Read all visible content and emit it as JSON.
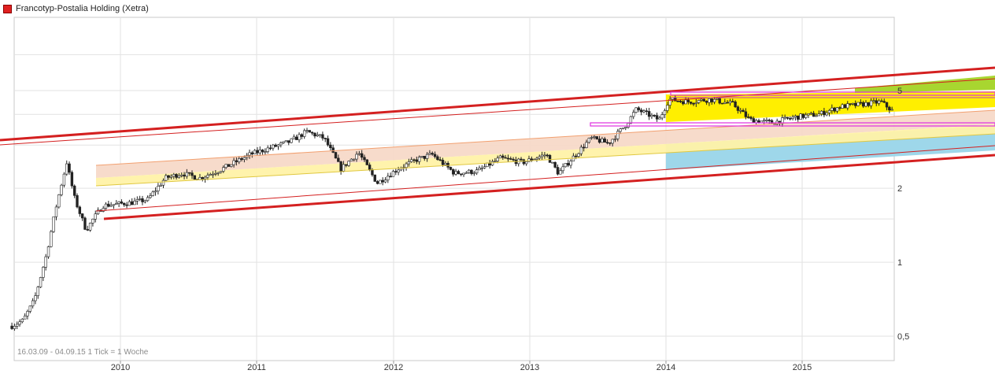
{
  "legend": {
    "label": "Francotyp-Postalia Holding (Xetra)",
    "color": "#e02020"
  },
  "range_note": "16.03.09 - 04.09.15   1 Tick = 1 Woche",
  "chart_data": {
    "type": "candlestick",
    "title": "Francotyp-Postalia Holding (Xetra)",
    "x_range": [
      "2009-03-16",
      "2015-09-04"
    ],
    "x_tick_labels": [
      "2010",
      "2011",
      "2012",
      "2013",
      "2014",
      "2015"
    ],
    "y_scale": "log",
    "y_range": [
      0.4,
      7.5
    ],
    "y_tick_labels": [
      "0,5",
      "1",
      "2",
      "5"
    ],
    "y_tick_values": [
      0.5,
      1,
      2,
      5
    ],
    "grid": true,
    "legend_position": "top-left",
    "series": [
      {
        "name": "Francotyp-Postalia Holding (Xetra)",
        "points": [
          [
            "2009-03-16",
            0.55
          ],
          [
            "2009-04-15",
            0.58
          ],
          [
            "2009-05-15",
            0.7
          ],
          [
            "2009-06-15",
            1.05
          ],
          [
            "2009-07-15",
            1.75
          ],
          [
            "2009-08-10",
            2.55
          ],
          [
            "2009-09-01",
            1.8
          ],
          [
            "2009-10-01",
            1.35
          ],
          [
            "2009-10-20",
            1.5
          ],
          [
            "2009-11-15",
            1.7
          ],
          [
            "2009-12-15",
            1.72
          ],
          [
            "2010-02-01",
            1.75
          ],
          [
            "2010-03-15",
            1.8
          ],
          [
            "2010-05-01",
            2.2
          ],
          [
            "2010-06-15",
            2.3
          ],
          [
            "2010-08-01",
            2.2
          ],
          [
            "2010-10-01",
            2.4
          ],
          [
            "2010-12-15",
            2.75
          ],
          [
            "2011-02-15",
            2.95
          ],
          [
            "2011-04-01",
            3.1
          ],
          [
            "2011-05-15",
            3.4
          ],
          [
            "2011-07-01",
            3.2
          ],
          [
            "2011-08-15",
            2.4
          ],
          [
            "2011-10-01",
            2.8
          ],
          [
            "2011-11-20",
            2.1
          ],
          [
            "2012-01-15",
            2.4
          ],
          [
            "2012-03-01",
            2.6
          ],
          [
            "2012-04-15",
            2.75
          ],
          [
            "2012-06-15",
            2.3
          ],
          [
            "2012-08-15",
            2.35
          ],
          [
            "2012-10-15",
            2.65
          ],
          [
            "2012-12-15",
            2.55
          ],
          [
            "2013-02-15",
            2.75
          ],
          [
            "2013-03-20",
            2.3
          ],
          [
            "2013-05-01",
            2.7
          ],
          [
            "2013-06-15",
            3.2
          ],
          [
            "2013-08-01",
            3.05
          ],
          [
            "2013-09-15",
            3.6
          ],
          [
            "2013-10-15",
            4.2
          ],
          [
            "2013-12-15",
            3.8
          ],
          [
            "2014-01-10",
            4.6
          ],
          [
            "2014-03-01",
            4.5
          ],
          [
            "2014-05-01",
            4.6
          ],
          [
            "2014-07-01",
            4.4
          ],
          [
            "2014-08-15",
            3.8
          ],
          [
            "2014-10-15",
            3.7
          ],
          [
            "2014-12-15",
            3.9
          ],
          [
            "2015-02-15",
            4.0
          ],
          [
            "2015-04-15",
            4.3
          ],
          [
            "2015-06-15",
            4.4
          ],
          [
            "2015-08-01",
            4.5
          ],
          [
            "2015-09-04",
            4.1
          ]
        ]
      }
    ],
    "annotations": [
      {
        "type": "trend-channel",
        "color": "#d42020"
      },
      {
        "type": "band",
        "color": "#f7d9c8"
      },
      {
        "type": "band",
        "color": "#fff2a8"
      },
      {
        "type": "band",
        "color": "#ffef00"
      },
      {
        "type": "band",
        "color": "#a8d630"
      },
      {
        "type": "band",
        "color": "#9ed7ea"
      },
      {
        "type": "range-box",
        "color": "#e030e0"
      }
    ]
  }
}
